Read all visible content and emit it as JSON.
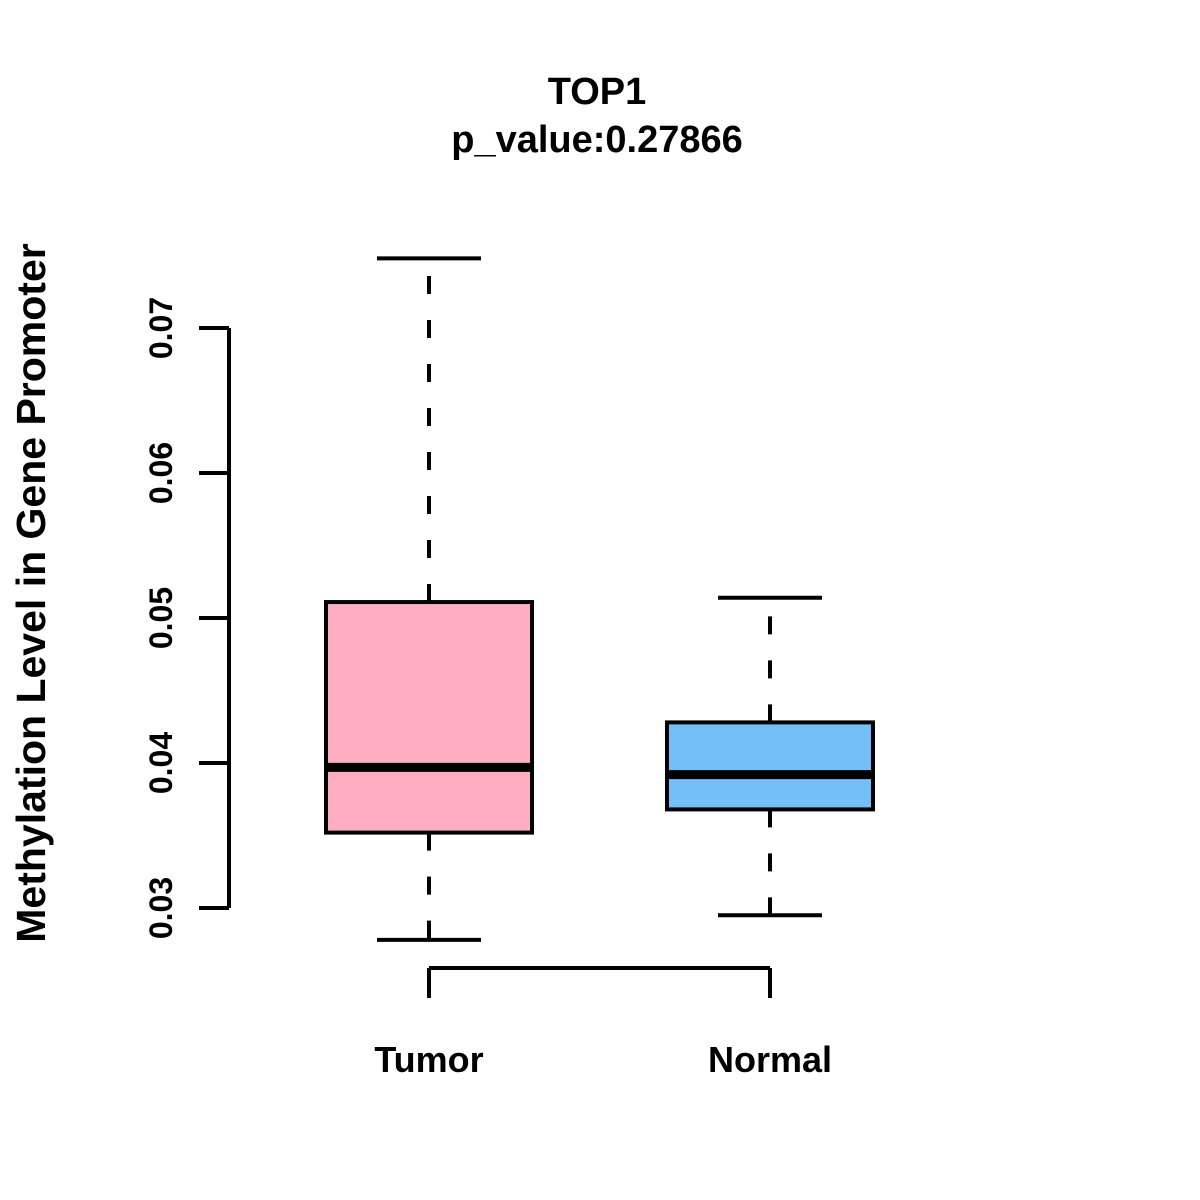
{
  "figure": {
    "background": "#ffffff",
    "line_color": "#000000"
  },
  "chart_data": {
    "type": "boxplot",
    "title": "TOP1",
    "subtitle": "p_value:0.27866",
    "ylabel": "Methylation Level in Gene Promoter",
    "xlabel": "",
    "categories": [
      "Tumor",
      "Normal"
    ],
    "yticks": [
      0.03,
      0.04,
      0.05,
      0.06,
      0.07
    ],
    "ytick_labels": [
      "0.03",
      "0.04",
      "0.05",
      "0.06",
      "0.07"
    ],
    "ylim": [
      0.0278,
      0.0748
    ],
    "grid": false,
    "legend": "none",
    "orientation": "vertical",
    "whisker_style": "dashed",
    "series": [
      {
        "name": "Tumor",
        "color": "#FFAEC2",
        "min": 0.0278,
        "q1": 0.0352,
        "median": 0.0397,
        "q3": 0.0511,
        "max": 0.0748
      },
      {
        "name": "Normal",
        "color": "#74BFF8",
        "min": 0.0295,
        "q1": 0.0368,
        "median": 0.0392,
        "q3": 0.0428,
        "max": 0.0514
      }
    ]
  }
}
